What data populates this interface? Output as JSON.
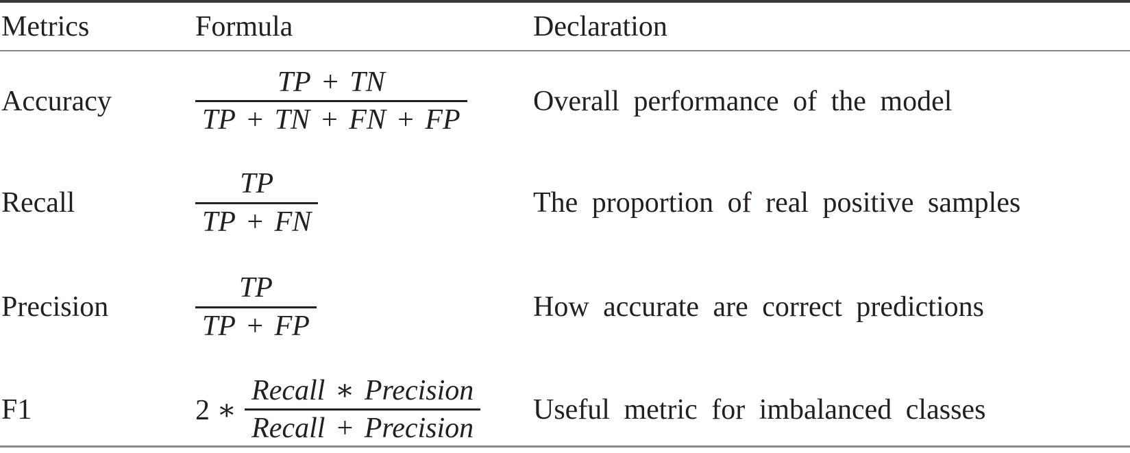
{
  "table": {
    "columns": [
      "Metrics",
      "Formula",
      "Declaration"
    ],
    "rows": [
      {
        "metric": "Accuracy",
        "formula": {
          "prefix": "",
          "numerator": "TP + TN",
          "denominator": "TP + TN + FN + FP"
        },
        "declaration": "Overall performance of the model"
      },
      {
        "metric": "Recall",
        "formula": {
          "prefix": "",
          "numerator": "TP",
          "denominator": "TP + FN"
        },
        "declaration": "The proportion of real positive samples"
      },
      {
        "metric": "Precision",
        "formula": {
          "prefix": "",
          "numerator": "TP",
          "denominator": "TP + FP"
        },
        "declaration": "How accurate are correct predictions"
      },
      {
        "metric": "F1",
        "formula": {
          "prefix": "2 ∗",
          "numerator": "Recall ∗ Precision",
          "denominator": "Recall + Precision"
        },
        "declaration": "Useful metric for imbalanced classes"
      }
    ]
  },
  "colors": {
    "text": "#231f20",
    "rule_top": "#3a3a3a",
    "rule_header": "#858585",
    "rule_bottom": "#8a8a8a",
    "fraction_bar": "#222222",
    "background": "#ffffff"
  }
}
